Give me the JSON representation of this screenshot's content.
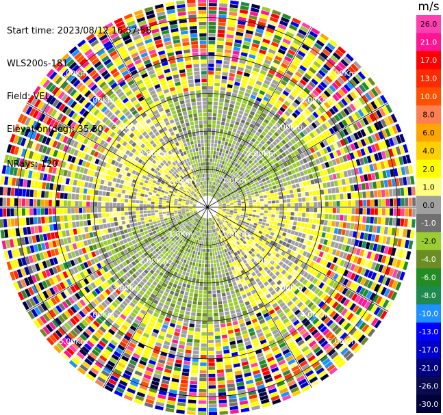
{
  "header": {
    "start_time": "Start time: 2023/08/12 16:57:58",
    "instrument": "WLS200s-181",
    "field": "Field: VEL",
    "elevation": "Elevation(deg): 35.30",
    "nrays": "NRays: 120"
  },
  "range_ring_labels": [
    "1.0Km",
    "2.00Km",
    "3.00Km",
    "4.00Km",
    "5.00Km"
  ],
  "colorbar": {
    "unit": "m/s",
    "ticks": [
      "26.0",
      "21.0",
      "17.0",
      "13.0",
      "10.0",
      "8.0",
      "6.0",
      "4.0",
      "2.0",
      "1.0",
      "0.0",
      "-1.0",
      "-2.0",
      "-4.0",
      "-6.0",
      "-8.0",
      "-10.0",
      "-13.0",
      "-17.0",
      "-21.0",
      "-26.0",
      "-30.0"
    ],
    "colors": [
      "#ff40b0",
      "#ff1493",
      "#ff0000",
      "#ff2a00",
      "#ff5000",
      "#ff7f50",
      "#ffa500",
      "#ffd000",
      "#ffff00",
      "#ffff80",
      "#a0a0a0",
      "#707070",
      "#9acd32",
      "#6b8e23",
      "#228b22",
      "#1f8a50",
      "#1e90ff",
      "#0000ff",
      "#0000cd",
      "#000080",
      "#0a0a50",
      "#00003a"
    ]
  },
  "chart_data": {
    "type": "ppi",
    "field": "VEL",
    "units": "m/s",
    "elevation_deg": 35.3,
    "nrays": 120,
    "range_rings_km": [
      1.0,
      2.0,
      3.0,
      4.0,
      5.0
    ],
    "value_range": [
      -30.0,
      26.0
    ]
  }
}
